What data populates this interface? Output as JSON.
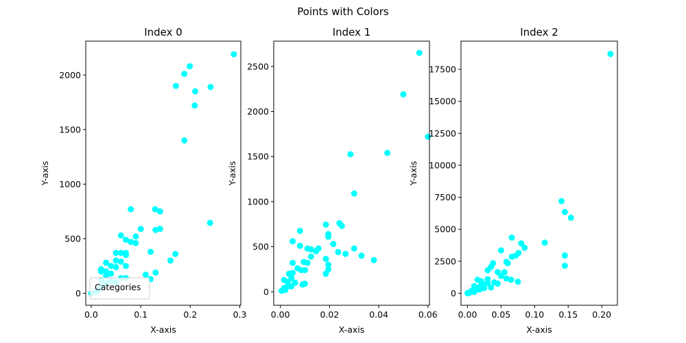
{
  "figure": {
    "suptitle": "Points with Colors"
  },
  "chart_data": [
    {
      "type": "scatter",
      "title": "Index 0",
      "xlabel": "X-axis",
      "ylabel": "Y-axis",
      "xlim": [
        -0.011,
        0.302
      ],
      "ylim": [
        -110,
        2310
      ],
      "xticks": [
        0.0,
        0.1,
        0.2,
        0.3
      ],
      "xtick_labels": [
        "0.0",
        "0.1",
        "0.2",
        "0.3"
      ],
      "yticks": [
        0,
        500,
        1000,
        1500,
        2000
      ],
      "ytick_labels": [
        "0",
        "500",
        "1000",
        "1500",
        "2000"
      ],
      "grid": false,
      "legend": {
        "title": "Categories",
        "placement": "lower-left"
      },
      "color": "#00ffff",
      "points": [
        [
          0.288,
          2190
        ],
        [
          0.199,
          2080
        ],
        [
          0.188,
          2010
        ],
        [
          0.21,
          1850
        ],
        [
          0.241,
          1890
        ],
        [
          0.171,
          1900
        ],
        [
          0.209,
          1720
        ],
        [
          0.188,
          1400
        ],
        [
          0.08,
          770
        ],
        [
          0.129,
          770
        ],
        [
          0.139,
          750
        ],
        [
          0.24,
          645
        ],
        [
          0.1,
          590
        ],
        [
          0.139,
          590
        ],
        [
          0.13,
          580
        ],
        [
          0.06,
          530
        ],
        [
          0.09,
          520
        ],
        [
          0.07,
          490
        ],
        [
          0.08,
          470
        ],
        [
          0.09,
          460
        ],
        [
          0.12,
          380
        ],
        [
          0.05,
          370
        ],
        [
          0.06,
          370
        ],
        [
          0.07,
          370
        ],
        [
          0.07,
          350
        ],
        [
          0.17,
          360
        ],
        [
          0.16,
          300
        ],
        [
          0.05,
          300
        ],
        [
          0.06,
          290
        ],
        [
          0.03,
          280
        ],
        [
          0.04,
          250
        ],
        [
          0.07,
          250
        ],
        [
          0.05,
          240
        ],
        [
          0.02,
          220
        ],
        [
          0.02,
          200
        ],
        [
          0.03,
          200
        ],
        [
          0.04,
          180
        ],
        [
          0.11,
          170
        ],
        [
          0.13,
          190
        ],
        [
          0.03,
          160
        ],
        [
          0.06,
          140
        ],
        [
          0.07,
          140
        ],
        [
          0.12,
          130
        ],
        [
          0.02,
          120
        ],
        [
          0.04,
          110
        ],
        [
          0.0,
          0
        ],
        [
          0.01,
          10
        ],
        [
          0.015,
          30
        ],
        [
          0.02,
          60
        ],
        [
          0.03,
          90
        ],
        [
          0.05,
          100
        ]
      ]
    },
    {
      "type": "scatter",
      "title": "Index 1",
      "xlabel": "X-axis",
      "ylabel": "Y-axis",
      "xlim": [
        -0.0027,
        0.0606
      ],
      "ylim": [
        -150,
        2780
      ],
      "xticks": [
        0.0,
        0.02,
        0.04,
        0.06
      ],
      "xtick_labels": [
        "0.00",
        "0.02",
        "0.04",
        "0.06"
      ],
      "yticks": [
        0,
        500,
        1000,
        1500,
        2000,
        2500
      ],
      "ytick_labels": [
        "0",
        "500",
        "1000",
        "1500",
        "2000",
        "2500"
      ],
      "grid": false,
      "color": "#00ffff",
      "points": [
        [
          0.0565,
          2650
        ],
        [
          0.05,
          2190
        ],
        [
          0.06,
          1720
        ],
        [
          0.0435,
          1540
        ],
        [
          0.0285,
          1525
        ],
        [
          0.03,
          1090
        ],
        [
          0.0185,
          745
        ],
        [
          0.024,
          760
        ],
        [
          0.025,
          730
        ],
        [
          0.008,
          675
        ],
        [
          0.0195,
          640
        ],
        [
          0.0195,
          610
        ],
        [
          0.005,
          560
        ],
        [
          0.0215,
          530
        ],
        [
          0.008,
          510
        ],
        [
          0.011,
          480
        ],
        [
          0.0125,
          470
        ],
        [
          0.0155,
          480
        ],
        [
          0.0145,
          450
        ],
        [
          0.03,
          480
        ],
        [
          0.0265,
          420
        ],
        [
          0.0235,
          440
        ],
        [
          0.033,
          400
        ],
        [
          0.0125,
          390
        ],
        [
          0.038,
          350
        ],
        [
          0.0185,
          365
        ],
        [
          0.0095,
          330
        ],
        [
          0.011,
          320
        ],
        [
          0.005,
          320
        ],
        [
          0.007,
          260
        ],
        [
          0.0085,
          240
        ],
        [
          0.01,
          240
        ],
        [
          0.0195,
          300
        ],
        [
          0.0195,
          250
        ],
        [
          0.0185,
          200
        ],
        [
          0.005,
          210
        ],
        [
          0.0035,
          200
        ],
        [
          0.0045,
          150
        ],
        [
          0.0015,
          130
        ],
        [
          0.003,
          110
        ],
        [
          0.006,
          100
        ],
        [
          0.009,
          80
        ],
        [
          0.01,
          90
        ],
        [
          0.0045,
          60
        ],
        [
          0.0025,
          50
        ],
        [
          0.0015,
          40
        ],
        [
          0.002,
          20
        ],
        [
          0.0005,
          10
        ]
      ]
    },
    {
      "type": "scatter",
      "title": "Index 2",
      "xlabel": "X-axis",
      "ylabel": "Y-axis",
      "xlim": [
        -0.0097,
        0.2233
      ],
      "ylim": [
        -940,
        19700
      ],
      "xticks": [
        0.0,
        0.05,
        0.1,
        0.15,
        0.2
      ],
      "xtick_labels": [
        "0.00",
        "0.05",
        "0.10",
        "0.15",
        "0.20"
      ],
      "yticks": [
        0,
        2500,
        5000,
        7500,
        10000,
        12500,
        15000,
        17500
      ],
      "ytick_labels": [
        "0",
        "2500",
        "5000",
        "7500",
        "10000",
        "12500",
        "15000",
        "17500"
      ],
      "grid": false,
      "color": "#00ffff",
      "points": [
        [
          0.213,
          18700
        ],
        [
          0.14,
          7200
        ],
        [
          0.145,
          6350
        ],
        [
          0.154,
          5900
        ],
        [
          0.115,
          3950
        ],
        [
          0.145,
          2950
        ],
        [
          0.145,
          2150
        ],
        [
          0.066,
          4350
        ],
        [
          0.08,
          3900
        ],
        [
          0.085,
          3550
        ],
        [
          0.076,
          3150
        ],
        [
          0.072,
          2950
        ],
        [
          0.066,
          2850
        ],
        [
          0.05,
          3350
        ],
        [
          0.058,
          2450
        ],
        [
          0.06,
          2350
        ],
        [
          0.038,
          2350
        ],
        [
          0.035,
          2050
        ],
        [
          0.03,
          1800
        ],
        [
          0.045,
          1650
        ],
        [
          0.055,
          1650
        ],
        [
          0.05,
          1350
        ],
        [
          0.058,
          1150
        ],
        [
          0.065,
          1050
        ],
        [
          0.075,
          900
        ],
        [
          0.04,
          850
        ],
        [
          0.045,
          750
        ],
        [
          0.03,
          1100
        ],
        [
          0.015,
          1050
        ],
        [
          0.02,
          950
        ],
        [
          0.03,
          800
        ],
        [
          0.025,
          700
        ],
        [
          0.02,
          600
        ],
        [
          0.01,
          550
        ],
        [
          0.015,
          450
        ],
        [
          0.025,
          400
        ],
        [
          0.035,
          450
        ],
        [
          0.018,
          300
        ],
        [
          0.012,
          250
        ],
        [
          0.008,
          200
        ],
        [
          0.005,
          150
        ],
        [
          0.01,
          100
        ],
        [
          0.003,
          50
        ],
        [
          0.0,
          0
        ],
        [
          0.002,
          20
        ]
      ]
    }
  ]
}
